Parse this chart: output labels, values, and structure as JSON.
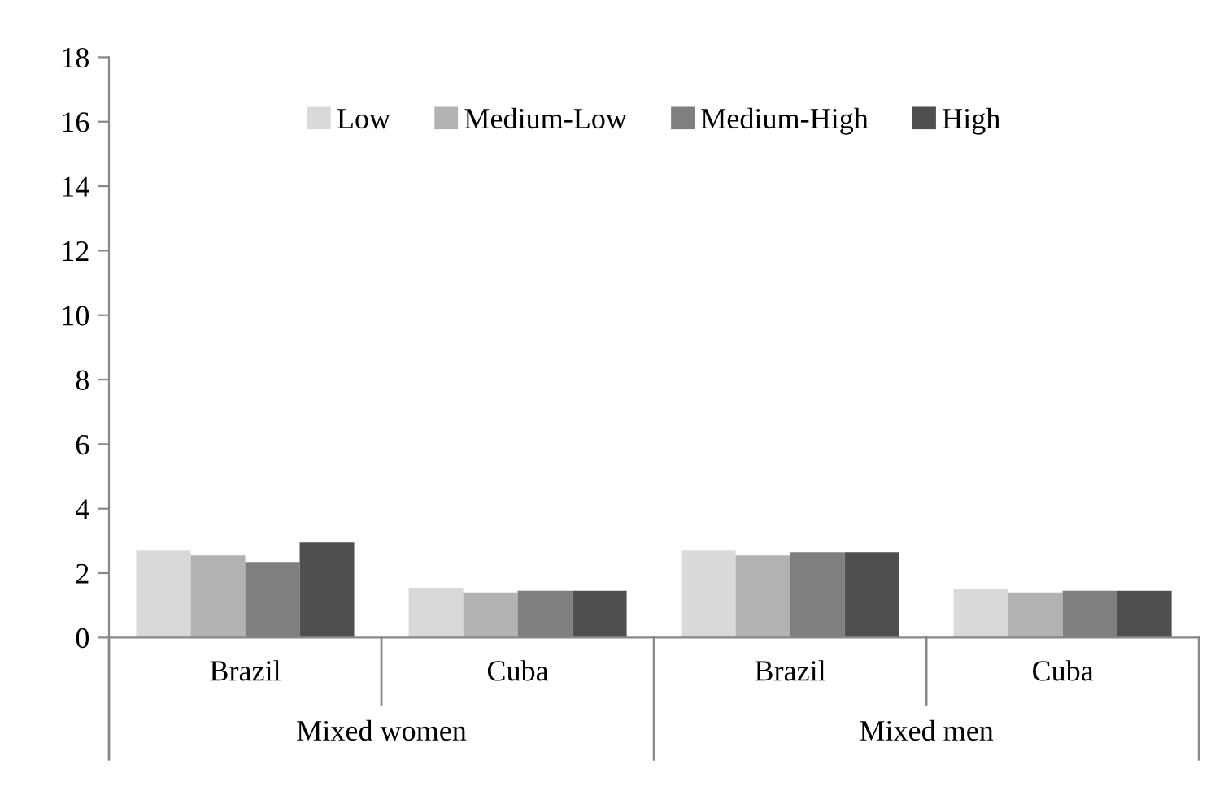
{
  "chart_data": {
    "type": "bar",
    "categories": [
      "Brazil",
      "Cuba",
      "Brazil",
      "Cuba"
    ],
    "annotations": [
      "Mixed women",
      "Mixed men"
    ],
    "series": [
      {
        "name": "Low",
        "color": "#d9d9d9",
        "values": [
          2.7,
          1.55,
          2.7,
          1.5
        ]
      },
      {
        "name": "Medium-Low",
        "color": "#b2b2b2",
        "values": [
          2.55,
          1.4,
          2.55,
          1.4
        ]
      },
      {
        "name": "Medium-High",
        "color": "#7f7f7f",
        "values": [
          2.35,
          1.45,
          2.65,
          1.45
        ]
      },
      {
        "name": "High",
        "color": "#4f4f4f",
        "values": [
          2.95,
          1.45,
          2.65,
          1.45
        ]
      }
    ],
    "ylim": [
      0,
      18
    ],
    "yticks": [
      0,
      2,
      4,
      6,
      8,
      10,
      12,
      14,
      16,
      18
    ],
    "grid": false,
    "legend": "top"
  }
}
